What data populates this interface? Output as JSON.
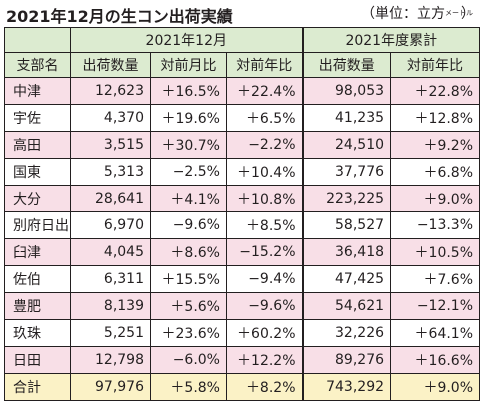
{
  "title": "2021年12月の生コン出荷実績",
  "unit": {
    "prefix": "（単位：立方",
    "small": "メートル",
    "suffix": "）"
  },
  "table": {
    "group_headers": [
      "2021年12月",
      "2021年度累計"
    ],
    "columns": [
      "支部名",
      "出荷数量",
      "対前月比",
      "対前年比",
      "出荷数量",
      "対前年比"
    ],
    "rows": [
      [
        "中津",
        "12,623",
        "＋16.5%",
        "＋22.4%",
        "98,053",
        "＋22.8%"
      ],
      [
        "宇佐",
        "4,370",
        "＋19.6%",
        "＋6.5%",
        "41,235",
        "＋12.8%"
      ],
      [
        "高田",
        "3,515",
        "＋30.7%",
        "−2.2%",
        "24,510",
        "＋9.2%"
      ],
      [
        "国東",
        "5,313",
        "−2.5%",
        "＋10.4%",
        "37,776",
        "＋6.8%"
      ],
      [
        "大分",
        "28,641",
        "＋4.1%",
        "＋10.8%",
        "223,225",
        "＋9.0%"
      ],
      [
        "別府日出",
        "6,970",
        "−9.6%",
        "＋8.5%",
        "58,527",
        "−13.3%"
      ],
      [
        "臼津",
        "4,045",
        "＋8.6%",
        "−15.2%",
        "36,418",
        "＋10.5%"
      ],
      [
        "佐伯",
        "6,311",
        "＋15.5%",
        "−9.4%",
        "47,425",
        "＋7.6%"
      ],
      [
        "豊肥",
        "8,139",
        "＋5.6%",
        "−9.6%",
        "54,621",
        "−12.1%"
      ],
      [
        "玖珠",
        "5,251",
        "＋23.6%",
        "＋60.2%",
        "32,226",
        "＋64.1%"
      ],
      [
        "日田",
        "12,798",
        "−6.0%",
        "＋12.2%",
        "89,276",
        "＋16.6%"
      ]
    ],
    "total": [
      "合計",
      "97,976",
      "＋5.8%",
      "＋8.2%",
      "743,292",
      "＋9.0%"
    ]
  },
  "colors": {
    "header_bg": "#dcebd0",
    "row_pink": "#f8dfe7",
    "total_bg": "#fbf2c6"
  }
}
